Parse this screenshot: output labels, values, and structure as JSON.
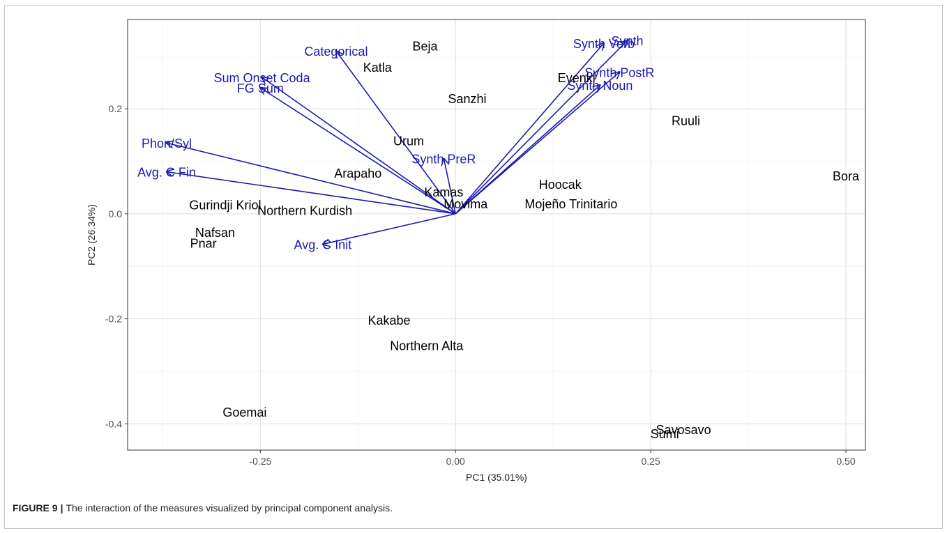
{
  "figure": {
    "label": "FIGURE 9",
    "separator": "|",
    "caption": "The interaction of the measures visualized by principal component analysis."
  },
  "chart_data": {
    "type": "scatter",
    "subtype": "pca-biplot",
    "xlabel": "PC1 (35.01%)",
    "ylabel": "PC2 (26.34%)",
    "xlim": [
      -0.42,
      0.525
    ],
    "ylim": [
      -0.45,
      0.37
    ],
    "xticks": [
      -0.25,
      0.0,
      0.25,
      0.5
    ],
    "xtick_labels": [
      "-0.25",
      "0.00",
      "0.25",
      "0.50"
    ],
    "yticks": [
      -0.4,
      -0.2,
      0.0,
      0.2
    ],
    "ytick_labels": [
      "-0.4",
      "-0.2",
      "0.0",
      "0.2"
    ],
    "grid": true,
    "colors": {
      "points": "#000000",
      "loadings": "#1a1aae",
      "grid": "#ebebeb",
      "panel_border": "#333333"
    },
    "points": [
      {
        "label": "Beja",
        "x": -0.039,
        "y": 0.32
      },
      {
        "label": "Katla",
        "x": -0.1,
        "y": 0.28
      },
      {
        "label": "Sanzhi",
        "x": 0.015,
        "y": 0.22
      },
      {
        "label": "Evenki",
        "x": 0.155,
        "y": 0.26
      },
      {
        "label": "Ruuli",
        "x": 0.295,
        "y": 0.178
      },
      {
        "label": "Urum",
        "x": -0.06,
        "y": 0.14
      },
      {
        "label": "Arapaho",
        "x": -0.125,
        "y": 0.078
      },
      {
        "label": "Bora",
        "x": 0.5,
        "y": 0.073
      },
      {
        "label": "Hoocak",
        "x": 0.134,
        "y": 0.057
      },
      {
        "label": "Kamas",
        "x": -0.015,
        "y": 0.042
      },
      {
        "label": "Movima",
        "x": 0.013,
        "y": 0.02
      },
      {
        "label": "Mojeño Trinitario",
        "x": 0.148,
        "y": 0.02
      },
      {
        "label": "Gurindji Kriol",
        "x": -0.295,
        "y": 0.018
      },
      {
        "label": "Northern Kurdish",
        "x": -0.193,
        "y": 0.007
      },
      {
        "label": "Nafsan",
        "x": -0.308,
        "y": -0.035
      },
      {
        "label": "Pnar",
        "x": -0.323,
        "y": -0.055
      },
      {
        "label": "Kakabe",
        "x": -0.085,
        "y": -0.202
      },
      {
        "label": "Northern Alta",
        "x": -0.037,
        "y": -0.25
      },
      {
        "label": "Goemai",
        "x": -0.27,
        "y": -0.377
      },
      {
        "label": "Savosavo",
        "x": 0.292,
        "y": -0.41
      },
      {
        "label": "Sumi",
        "x": 0.268,
        "y": -0.418
      }
    ],
    "loadings": [
      {
        "label": "Categorical",
        "x": -0.153,
        "y": 0.31
      },
      {
        "label": "Sum Onset Coda",
        "x": -0.248,
        "y": 0.26
      },
      {
        "label": "FG Sum",
        "x": -0.25,
        "y": 0.24
      },
      {
        "label": "Phon/Syl",
        "x": -0.37,
        "y": 0.135
      },
      {
        "label": "Avg. C Fin",
        "x": -0.37,
        "y": 0.08
      },
      {
        "label": "Synth PreR",
        "x": -0.015,
        "y": 0.105
      },
      {
        "label": "Avg. C Init",
        "x": -0.17,
        "y": -0.058
      },
      {
        "label": "Synth Verb",
        "x": 0.19,
        "y": 0.325
      },
      {
        "label": "Synth",
        "x": 0.22,
        "y": 0.33
      },
      {
        "label": "Synth PostR",
        "x": 0.21,
        "y": 0.27
      },
      {
        "label": "Synth Noun",
        "x": 0.185,
        "y": 0.245
      }
    ]
  }
}
